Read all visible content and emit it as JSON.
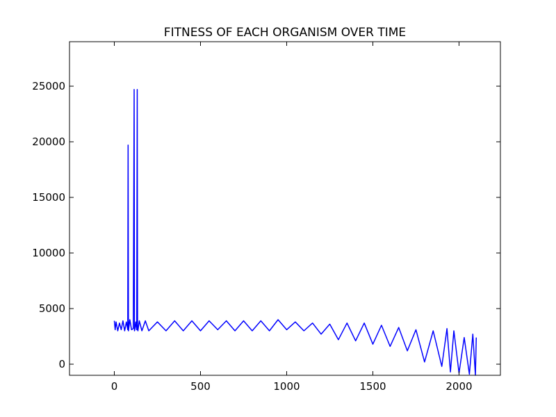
{
  "chart_data": {
    "type": "line",
    "title": "FITNESS OF EACH ORGANISM OVER TIME",
    "xlabel": "",
    "ylabel": "",
    "xlim": [
      -260,
      2240
    ],
    "ylim": [
      -1000,
      29000
    ],
    "xticks": [
      0,
      500,
      1000,
      1500,
      2000
    ],
    "yticks": [
      0,
      5000,
      10000,
      15000,
      20000,
      25000
    ],
    "grid": false,
    "line_color": "#0000ff",
    "series": [
      {
        "x": [
          0,
          5,
          10,
          20,
          30,
          40,
          50,
          60,
          70,
          78,
          80,
          82,
          90,
          100,
          110,
          115,
          117,
          119,
          125,
          130,
          133,
          135,
          137,
          145,
          160,
          180,
          200,
          250,
          300,
          350,
          400,
          450,
          500,
          550,
          600,
          650,
          700,
          750,
          800,
          850,
          900,
          950,
          1000,
          1050,
          1100,
          1150,
          1200,
          1250,
          1300,
          1350,
          1400,
          1450,
          1500,
          1550,
          1600,
          1650,
          1700,
          1750,
          1800,
          1850,
          1900,
          1930,
          1950,
          1970,
          2000,
          2030,
          2060,
          2080,
          2095,
          2100
        ],
        "y": [
          3900,
          3100,
          3800,
          3000,
          3700,
          3100,
          3900,
          3000,
          3800,
          3100,
          19700,
          3000,
          4000,
          3100,
          3200,
          24700,
          3000,
          3100,
          3800,
          3100,
          24700,
          3100,
          3000,
          3900,
          3000,
          3900,
          3000,
          3800,
          3000,
          3900,
          3000,
          3900,
          3000,
          3900,
          3100,
          3900,
          3000,
          3900,
          3000,
          3900,
          3000,
          4000,
          3100,
          3800,
          3000,
          3700,
          2700,
          3600,
          2200,
          3700,
          2100,
          3700,
          1800,
          3500,
          1600,
          3300,
          1200,
          3100,
          200,
          3000,
          -200,
          3200,
          -700,
          3000,
          -800,
          2400,
          -900,
          2700,
          -1000,
          2400
        ]
      }
    ]
  }
}
